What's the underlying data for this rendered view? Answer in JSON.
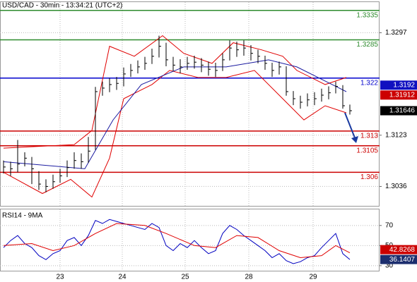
{
  "chart_data": [
    {
      "type": "ohlc",
      "title": "USD/CAD - 30min - 13:34:21 (UTC+2)",
      "close": [
        1.3069,
        1.3066,
        1.3074,
        1.3084,
        1.3066,
        1.304,
        1.3036,
        1.3044,
        1.3054,
        1.3068,
        1.308,
        1.3078,
        1.3096,
        1.3197,
        1.3203,
        1.3209,
        1.3211,
        1.3227,
        1.3233,
        1.3239,
        1.3245,
        1.3257,
        1.3274,
        1.3251,
        1.3242,
        1.3239,
        1.3245,
        1.3247,
        1.3242,
        1.3235,
        1.3233,
        1.3251,
        1.3271,
        1.3268,
        1.3271,
        1.3262,
        1.3257,
        1.3245,
        1.3233,
        1.3239,
        1.3197,
        1.3185,
        1.3179,
        1.3183,
        1.3185,
        1.3191,
        1.3195,
        1.3206,
        1.3173,
        1.31646
      ],
      "high": [
        1.308,
        1.3078,
        1.3115,
        1.3094,
        1.3086,
        1.3062,
        1.3048,
        1.3056,
        1.3066,
        1.308,
        1.3094,
        1.3092,
        1.312,
        1.3205,
        1.3214,
        1.322,
        1.3222,
        1.3238,
        1.3244,
        1.325,
        1.3256,
        1.327,
        1.3292,
        1.328,
        1.3256,
        1.3252,
        1.3256,
        1.3258,
        1.3254,
        1.3248,
        1.3246,
        1.3262,
        1.3284,
        1.3282,
        1.3284,
        1.3276,
        1.3268,
        1.3258,
        1.3246,
        1.3248,
        1.324,
        1.3198,
        1.319,
        1.3194,
        1.3196,
        1.3202,
        1.3206,
        1.3214,
        1.3208,
        1.3175
      ],
      "low": [
        1.3058,
        1.3054,
        1.306,
        1.307,
        1.304,
        1.303,
        1.3026,
        1.3032,
        1.3042,
        1.3052,
        1.3066,
        1.3066,
        1.3076,
        1.3098,
        1.319,
        1.3196,
        1.32,
        1.3206,
        1.3222,
        1.3228,
        1.3234,
        1.3244,
        1.3255,
        1.324,
        1.3232,
        1.3228,
        1.3234,
        1.3236,
        1.323,
        1.3224,
        1.3222,
        1.3232,
        1.325,
        1.3256,
        1.3258,
        1.325,
        1.3245,
        1.3234,
        1.3222,
        1.3226,
        1.319,
        1.3174,
        1.3168,
        1.3172,
        1.3174,
        1.318,
        1.3184,
        1.3194,
        1.3168,
        1.3158
      ],
      "bar_color": "#000000",
      "xlim": [
        -0.5,
        53.2
      ],
      "ylim": [
        1.3003,
        1.3349
      ],
      "yticks": [
        1.3036,
        1.3123,
        1.3297
      ],
      "grid": true,
      "levels": [
        {
          "value": 1.3335,
          "color": "#2e8b2e"
        },
        {
          "value": 1.3285,
          "color": "#2e8b2e"
        },
        {
          "value": 1.322,
          "color": "#0000cc"
        },
        {
          "value": 1.313,
          "color": "#cc0000"
        },
        {
          "value": 1.3105,
          "color": "#cc0000"
        },
        {
          "value": 1.306,
          "color": "#cc0000"
        }
      ],
      "overlays": [
        {
          "color": "#e00000",
          "x": [
            0,
            10,
            12.5,
            15,
            18.5,
            22.5,
            25.5,
            29.5,
            32.5,
            36.5,
            39.5,
            41.5,
            45.5,
            48.5
          ],
          "values": [
            1.3101,
            1.3107,
            1.3131,
            1.3274,
            1.3257,
            1.3292,
            1.3262,
            1.3245,
            1.328,
            1.3268,
            1.3257,
            1.3233,
            1.3209,
            1.3221
          ]
        },
        {
          "color": "#e00000",
          "x": [
            0,
            5.5,
            9.5,
            12.5,
            15,
            17,
            21,
            23.5,
            27.5,
            31.5,
            35.5,
            39.5,
            42.5,
            45.5,
            48.5
          ],
          "values": [
            1.306,
            1.3024,
            1.3048,
            1.3018,
            1.3084,
            1.3185,
            1.3209,
            1.3233,
            1.3221,
            1.3221,
            1.3233,
            1.3185,
            1.3149,
            1.3173,
            1.3161
          ]
        },
        {
          "color": "#1a1aa0",
          "x": [
            0,
            11.5,
            15.5,
            19.5,
            25.5,
            31.5,
            37.5,
            41.5,
            46.5,
            48.5
          ],
          "values": [
            1.3078,
            1.3066,
            1.3149,
            1.3209,
            1.3239,
            1.3239,
            1.3251,
            1.3239,
            1.3209,
            1.3197
          ]
        }
      ],
      "price_tags": [
        {
          "value": 1.3192,
          "color": "#1010c0"
        },
        {
          "value": 1.31912,
          "color": "#cc0000"
        },
        {
          "value": 1.31646,
          "color": "#000000"
        }
      ]
    },
    {
      "type": "line",
      "title": "RSI14 - 9MA",
      "series": [
        {
          "color": "#0000c0",
          "values": [
            48,
            55,
            60,
            52,
            48,
            40,
            36,
            42,
            45,
            55,
            58,
            50,
            60,
            75,
            72,
            76,
            74,
            72,
            70,
            68,
            66,
            72,
            68,
            50,
            45,
            52,
            48,
            55,
            48,
            42,
            45,
            62,
            70,
            66,
            60,
            55,
            50,
            45,
            38,
            42,
            35,
            32,
            34,
            38,
            40,
            48,
            55,
            62,
            42,
            36.1407
          ]
        },
        {
          "color": "#e00000",
          "x": [
            0,
            4,
            7,
            10,
            13,
            16,
            20,
            23,
            27,
            30,
            33,
            36,
            39,
            42,
            45,
            47,
            49
          ],
          "values": [
            50,
            52,
            45,
            50,
            62,
            72,
            70,
            62,
            50,
            48,
            60,
            58,
            45,
            38,
            40,
            50,
            42.8268
          ]
        }
      ],
      "xlim": [
        -0.5,
        53.2
      ],
      "ylim": [
        25,
        86
      ],
      "yticks": [
        30,
        50,
        70
      ],
      "grid": true,
      "xticks": [
        {
          "value": 8,
          "label": "23"
        },
        {
          "value": 16.8,
          "label": "24"
        },
        {
          "value": 25.7,
          "label": "25"
        },
        {
          "value": 34.7,
          "label": "28"
        },
        {
          "value": 43.8,
          "label": "29"
        }
      ],
      "price_tags": [
        {
          "value": 42.8268,
          "color": "#cc0000"
        },
        {
          "value": 36.1407,
          "color": "#1c2e6e"
        }
      ]
    }
  ]
}
